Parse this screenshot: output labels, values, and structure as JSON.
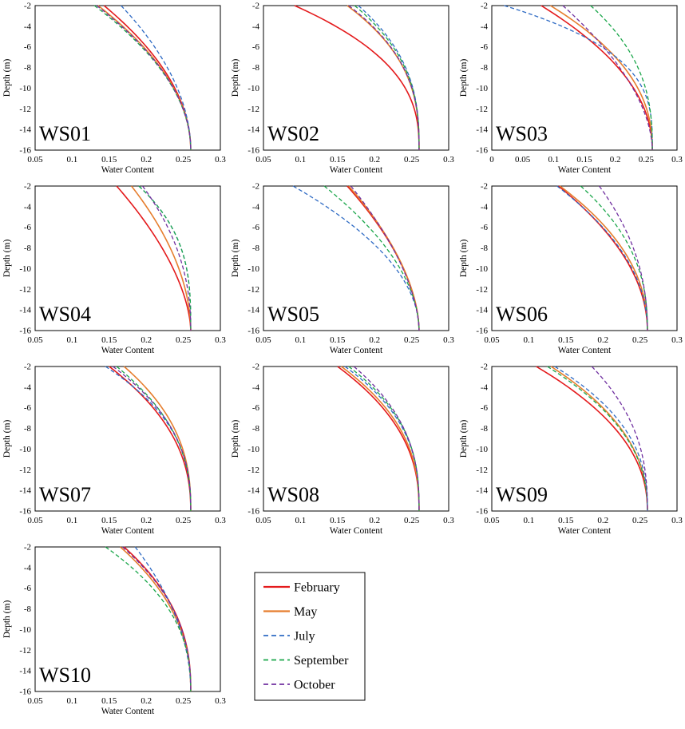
{
  "y_axis_label": "Depth (m)",
  "x_axis_label": "Water Content",
  "y_ticks": [
    "-2",
    "-4",
    "-6",
    "-8",
    "-10",
    "-12",
    "-14",
    "-16"
  ],
  "legend": [
    {
      "label": "February",
      "color": "#e41a1c",
      "dash": "solid"
    },
    {
      "label": "May",
      "color": "#e67e2e",
      "dash": "solid"
    },
    {
      "label": "July",
      "color": "#2f6bc4",
      "dash": "dashed"
    },
    {
      "label": "September",
      "color": "#1aa64a",
      "dash": "dashed"
    },
    {
      "label": "October",
      "color": "#7030a0",
      "dash": "dashed"
    }
  ],
  "chart_data": [
    {
      "type": "line",
      "title": "WS01",
      "xlabel": "Water Content",
      "ylabel": "Depth (m)",
      "xlim": [
        0.05,
        0.3
      ],
      "ylim": [
        -16,
        -2
      ],
      "x_ticks": [
        "0.05",
        "0.1",
        "0.15",
        "0.2",
        "0.25",
        "0.3"
      ],
      "series": [
        {
          "name": "February",
          "start": 0.143,
          "k": 1.0
        },
        {
          "name": "May",
          "start": 0.135,
          "k": 1.0
        },
        {
          "name": "July",
          "start": 0.166,
          "k": 0.95
        },
        {
          "name": "September",
          "start": 0.13,
          "k": 1.0
        },
        {
          "name": "October",
          "start": 0.133,
          "k": 1.0
        }
      ]
    },
    {
      "type": "line",
      "title": "WS02",
      "xlabel": "Water Content",
      "ylabel": "Depth (m)",
      "xlim": [
        0.05,
        0.3
      ],
      "ylim": [
        -16,
        -2
      ],
      "x_ticks": [
        "0.05",
        "0.1",
        "0.15",
        "0.2",
        "0.25",
        "0.3"
      ],
      "series": [
        {
          "name": "February",
          "start": 0.092,
          "k": 1.6
        },
        {
          "name": "May",
          "start": 0.163,
          "k": 1.7
        },
        {
          "name": "July",
          "start": 0.178,
          "k": 1.7
        },
        {
          "name": "September",
          "start": 0.173,
          "k": 1.7
        },
        {
          "name": "October",
          "start": 0.165,
          "k": 1.7
        }
      ]
    },
    {
      "type": "line",
      "title": "WS03",
      "xlabel": "Water Content",
      "ylabel": "Depth (m)",
      "xlim": [
        0,
        0.3
      ],
      "ylim": [
        -16,
        -2
      ],
      "x_ticks": [
        "0",
        "0.05",
        "0.1",
        "0.15",
        "0.2",
        "0.25",
        "0.3"
      ],
      "series": [
        {
          "name": "February",
          "start": 0.08,
          "k": 1.1
        },
        {
          "name": "May",
          "start": 0.095,
          "k": 1.3
        },
        {
          "name": "July",
          "start": 0.02,
          "k": 2.2
        },
        {
          "name": "September",
          "start": 0.16,
          "k": 1.6
        },
        {
          "name": "October",
          "start": 0.115,
          "k": 0.8
        }
      ]
    },
    {
      "type": "line",
      "title": "WS04",
      "xlabel": "Water Content",
      "ylabel": "Depth (m)",
      "xlim": [
        0.05,
        0.3
      ],
      "ylim": [
        -16,
        -2
      ],
      "x_ticks": [
        "0.05",
        "0.1",
        "0.15",
        "0.2",
        "0.25",
        "0.3"
      ],
      "series": [
        {
          "name": "February",
          "start": 0.16,
          "k": 0.7
        },
        {
          "name": "May",
          "start": 0.18,
          "k": 0.9
        },
        {
          "name": "July",
          "start": 0.19,
          "k": 2.0
        },
        {
          "name": "September",
          "start": 0.19,
          "k": 2.0
        },
        {
          "name": "October",
          "start": 0.195,
          "k": 1.2
        }
      ]
    },
    {
      "type": "line",
      "title": "WS05",
      "xlabel": "Water Content",
      "ylabel": "Depth (m)",
      "xlim": [
        0.05,
        0.3
      ],
      "ylim": [
        -16,
        -2
      ],
      "x_ticks": [
        "0.05",
        "0.1",
        "0.15",
        "0.2",
        "0.25",
        "0.3"
      ],
      "series": [
        {
          "name": "February",
          "start": 0.163,
          "k": 0.8
        },
        {
          "name": "May",
          "start": 0.165,
          "k": 0.8
        },
        {
          "name": "July",
          "start": 0.09,
          "k": 1.0
        },
        {
          "name": "September",
          "start": 0.132,
          "k": 0.9
        },
        {
          "name": "October",
          "start": 0.168,
          "k": 0.7
        }
      ]
    },
    {
      "type": "line",
      "title": "WS06",
      "xlabel": "Water Content",
      "ylabel": "Depth (m)",
      "xlim": [
        0.05,
        0.3
      ],
      "ylim": [
        -16,
        -2
      ],
      "x_ticks": [
        "0.05",
        "0.1",
        "0.15",
        "0.2",
        "0.25",
        "0.3"
      ],
      "series": [
        {
          "name": "February",
          "start": 0.14,
          "k": 1.0
        },
        {
          "name": "May",
          "start": 0.142,
          "k": 1.2
        },
        {
          "name": "July",
          "start": 0.138,
          "k": 1.1
        },
        {
          "name": "September",
          "start": 0.17,
          "k": 1.4
        },
        {
          "name": "October",
          "start": 0.195,
          "k": 1.2
        }
      ]
    },
    {
      "type": "line",
      "title": "WS07",
      "xlabel": "Water Content",
      "ylabel": "Depth (m)",
      "xlim": [
        0.05,
        0.3
      ],
      "ylim": [
        -16,
        -2
      ],
      "x_ticks": [
        "0.05",
        "0.1",
        "0.15",
        "0.2",
        "0.25",
        "0.3"
      ],
      "series": [
        {
          "name": "February",
          "start": 0.15,
          "k": 1.3
        },
        {
          "name": "May",
          "start": 0.17,
          "k": 1.5
        },
        {
          "name": "July",
          "start": 0.145,
          "k": 1.6
        },
        {
          "name": "September",
          "start": 0.16,
          "k": 1.4
        },
        {
          "name": "October",
          "start": 0.155,
          "k": 1.5
        }
      ]
    },
    {
      "type": "line",
      "title": "WS08",
      "xlabel": "Water Content",
      "ylabel": "Depth (m)",
      "xlim": [
        0.05,
        0.3
      ],
      "ylim": [
        -16,
        -2
      ],
      "x_ticks": [
        "0.05",
        "0.1",
        "0.15",
        "0.2",
        "0.25",
        "0.3"
      ],
      "series": [
        {
          "name": "February",
          "start": 0.15,
          "k": 1.4
        },
        {
          "name": "May",
          "start": 0.155,
          "k": 1.5
        },
        {
          "name": "July",
          "start": 0.16,
          "k": 1.7
        },
        {
          "name": "September",
          "start": 0.165,
          "k": 1.7
        },
        {
          "name": "October",
          "start": 0.172,
          "k": 1.6
        }
      ]
    },
    {
      "type": "line",
      "title": "WS09",
      "xlabel": "Water Content",
      "ylabel": "Depth (m)",
      "xlim": [
        0.05,
        0.3
      ],
      "ylim": [
        -16,
        -2
      ],
      "x_ticks": [
        "0.05",
        "0.1",
        "0.15",
        "0.2",
        "0.25",
        "0.3"
      ],
      "series": [
        {
          "name": "February",
          "start": 0.11,
          "k": 1.2
        },
        {
          "name": "May",
          "start": 0.13,
          "k": 1.3
        },
        {
          "name": "July",
          "start": 0.135,
          "k": 1.5
        },
        {
          "name": "September",
          "start": 0.125,
          "k": 1.3
        },
        {
          "name": "October",
          "start": 0.185,
          "k": 1.5
        }
      ]
    },
    {
      "type": "line",
      "title": "WS10",
      "xlabel": "Water Content",
      "ylabel": "Depth (m)",
      "xlim": [
        0.05,
        0.3
      ],
      "ylim": [
        -16,
        -2
      ],
      "x_ticks": [
        "0.05",
        "0.1",
        "0.15",
        "0.2",
        "0.25",
        "0.3"
      ],
      "series": [
        {
          "name": "February",
          "start": 0.17,
          "k": 1.4
        },
        {
          "name": "May",
          "start": 0.165,
          "k": 1.3
        },
        {
          "name": "July",
          "start": 0.185,
          "k": 1.0
        },
        {
          "name": "September",
          "start": 0.145,
          "k": 1.4
        },
        {
          "name": "October",
          "start": 0.168,
          "k": 1.4
        }
      ]
    }
  ]
}
